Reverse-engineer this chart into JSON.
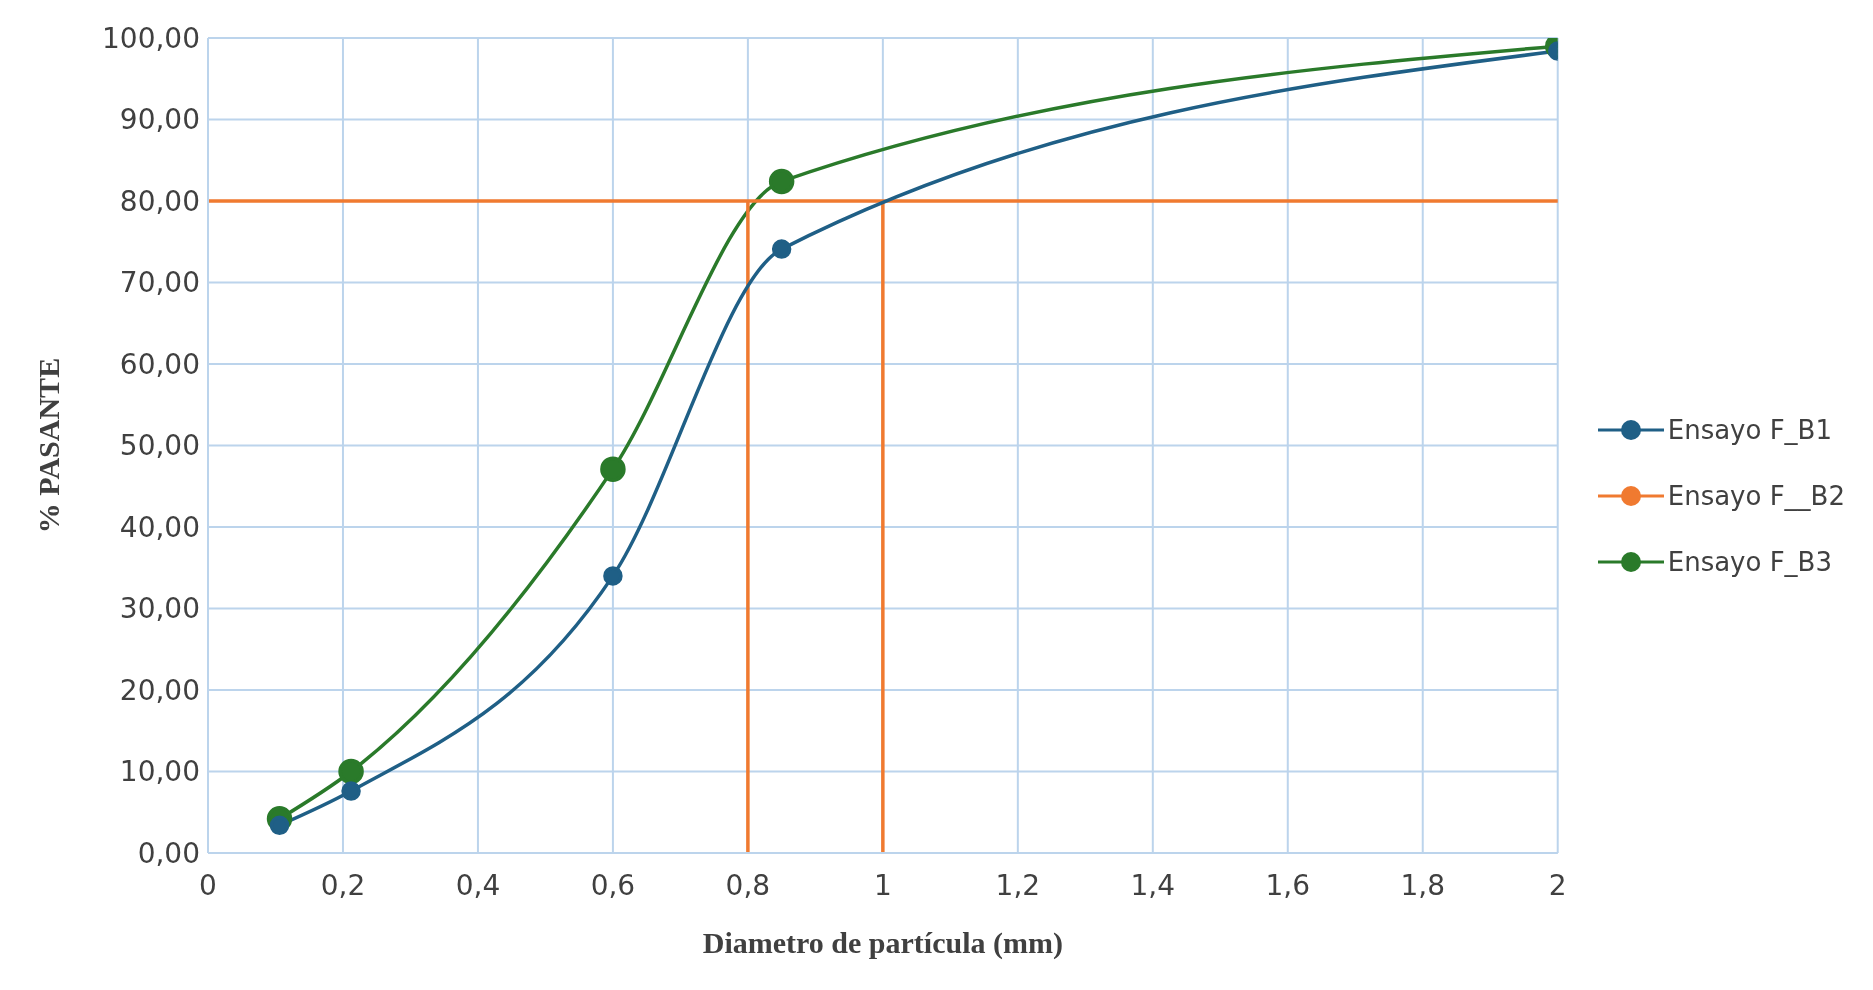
{
  "chart_data": {
    "type": "line",
    "xlabel": "Diametro de partícula (mm)",
    "ylabel": "% PASANTE",
    "series": [
      {
        "name": "Ensayo F_B1",
        "color": "#1f5f86",
        "x": [
          0.106,
          0.212,
          0.6,
          0.85,
          2
        ],
        "values": [
          3.4,
          7.6,
          34.0,
          74.1,
          98.4
        ],
        "marker": "circle"
      },
      {
        "name": "Ensayo F__B2",
        "color": "#f07a30",
        "x": [
          0.8,
          0.8,
          0,
          2,
          1,
          1
        ],
        "values": [
          0,
          80,
          80,
          80,
          80,
          0
        ],
        "marker": "none"
      },
      {
        "name": "Ensayo F_B3",
        "color": "#2a7a2a",
        "x": [
          0.106,
          0.212,
          0.6,
          0.85,
          2
        ],
        "values": [
          4.2,
          10.0,
          47.1,
          82.4,
          99.0
        ],
        "marker": "circle"
      }
    ],
    "xlim": [
      0,
      2
    ],
    "xticks": [
      0,
      {
        "value": 0.2,
        "label": "0,2"
      },
      {
        "value": 0.4,
        "label": "0,4"
      },
      {
        "value": 0.6,
        "label": "0,6"
      },
      {
        "value": 0.8,
        "label": "0,8"
      },
      1,
      {
        "value": 1.2,
        "label": "1,2"
      },
      {
        "value": 1.4,
        "label": "1,4"
      },
      {
        "value": 1.6,
        "label": "1,6"
      },
      {
        "value": 1.8,
        "label": "1,8"
      },
      2
    ],
    "ylim": [
      0,
      100
    ],
    "yticks": [
      {
        "value": 0,
        "label": "0,00"
      },
      {
        "value": 10,
        "label": "10,00"
      },
      {
        "value": 20,
        "label": "20,00"
      },
      {
        "value": 30,
        "label": "30,00"
      },
      {
        "value": 40,
        "label": "40,00"
      },
      {
        "value": 50,
        "label": "50,00"
      },
      {
        "value": 60,
        "label": "60,00"
      },
      {
        "value": 70,
        "label": "70,00"
      },
      {
        "value": 80,
        "label": "80,00"
      },
      {
        "value": 90,
        "label": "90,00"
      },
      {
        "value": 100,
        "label": "100,00"
      }
    ],
    "grid": true,
    "legend": "right",
    "line_style": "solid"
  }
}
